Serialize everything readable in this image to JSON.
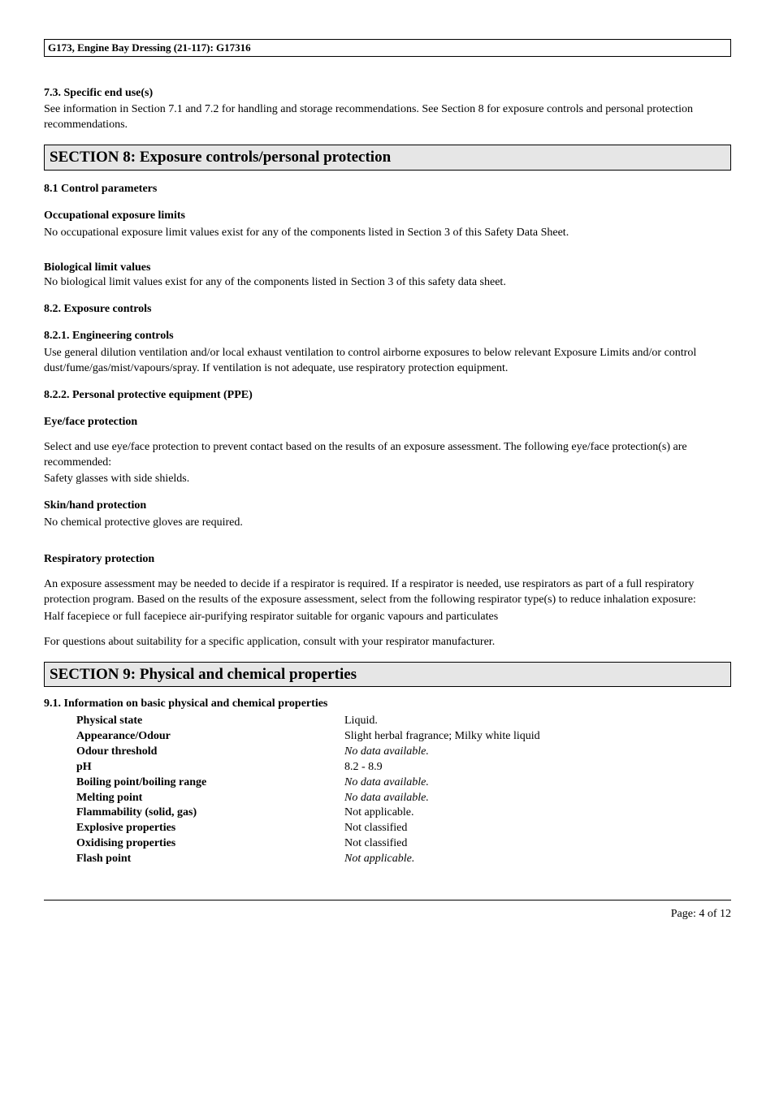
{
  "header": {
    "doc_code": "G173, Engine Bay Dressing (21-117): G17316"
  },
  "s7_3": {
    "heading": "7.3. Specific end use(s)",
    "body": "See information in Section 7.1 and 7.2 for handling and storage recommendations.  See Section 8 for exposure controls and personal protection recommendations."
  },
  "s8": {
    "title": "SECTION 8: Exposure controls/personal protection",
    "s8_1": {
      "heading": "8.1 Control parameters",
      "oel_heading": "Occupational exposure limits",
      "oel_body": "No occupational exposure limit values exist for any of the components listed in Section 3 of this Safety Data Sheet.",
      "blv_heading": "Biological limit values",
      "blv_body": "No biological limit values exist for any of the components listed in Section 3 of this safety data sheet."
    },
    "s8_2": {
      "heading": "8.2. Exposure controls",
      "eng_heading": "8.2.1. Engineering controls",
      "eng_body": "Use general dilution ventilation and/or local exhaust ventilation to control airborne exposures to below relevant Exposure Limits and/or control dust/fume/gas/mist/vapours/spray. If ventilation is not adequate, use respiratory protection equipment.",
      "ppe_heading": "8.2.2. Personal protective equipment (PPE)",
      "eye_heading": "Eye/face protection",
      "eye_body1": "Select and use eye/face protection to prevent contact based on the results of an exposure assessment.  The following eye/face protection(s) are recommended:",
      "eye_body2": "Safety glasses with side shields.",
      "skin_heading": "Skin/hand protection",
      "skin_body": "No chemical protective gloves are required.",
      "resp_heading": "Respiratory protection",
      "resp_body1": "An exposure assessment may be needed to decide if a respirator is required.  If a respirator is needed, use respirators as part of a full respiratory protection program.  Based on the results of the exposure assessment, select from the following respirator type(s) to reduce inhalation exposure:",
      "resp_body2": "Half facepiece or full facepiece air-purifying respirator suitable for organic vapours and particulates",
      "resp_body3": "For questions about suitability for a specific application, consult with your respirator manufacturer."
    }
  },
  "s9": {
    "title": "SECTION 9: Physical and chemical properties",
    "s9_1_heading": "9.1. Information on basic physical and chemical properties",
    "props": [
      {
        "label": "Physical state",
        "value": "Liquid.",
        "italic": false
      },
      {
        "label": "Appearance/Odour",
        "value": "Slight herbal fragrance; Milky white liquid",
        "italic": false
      },
      {
        "label": "Odour threshold",
        "value": "No data available.",
        "italic": true
      },
      {
        "label": "pH",
        "value": "8.2 - 8.9",
        "italic": false
      },
      {
        "label": "Boiling point/boiling range",
        "value": "No data available.",
        "italic": true
      },
      {
        "label": "Melting point",
        "value": "No data available.",
        "italic": true
      },
      {
        "label": "Flammability (solid, gas)",
        "value": "Not applicable.",
        "italic": false
      },
      {
        "label": "Explosive properties",
        "value": "Not classified",
        "italic": false
      },
      {
        "label": "Oxidising properties",
        "value": "Not classified",
        "italic": false
      },
      {
        "label": "Flash point",
        "value": "Not applicable.",
        "italic": true
      }
    ]
  },
  "footer": {
    "page": "Page: 4 of  12"
  }
}
